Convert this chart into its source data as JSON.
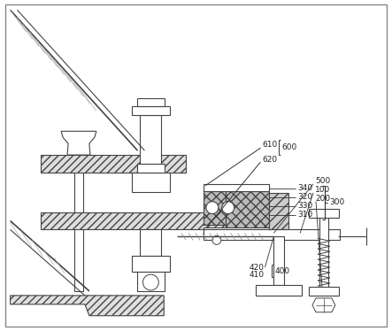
{
  "bg_color": "#ffffff",
  "line_color": "#444444",
  "fig_width": 4.43,
  "fig_height": 3.74,
  "dpi": 100
}
